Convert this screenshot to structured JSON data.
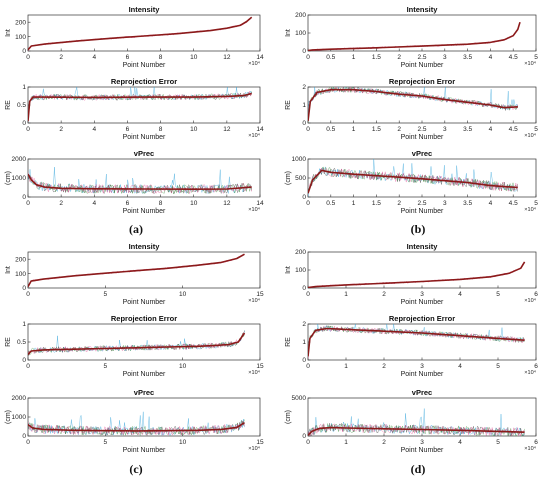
{
  "panels": [
    {
      "label": "(a)"
    },
    {
      "label": "(b)"
    },
    {
      "label": "(c)"
    },
    {
      "label": "(d)"
    }
  ],
  "colors": {
    "median": "#8b1a1a",
    "band": "#e23a8a",
    "noise_blue": "#2a9fd8",
    "noise_dark": "#3a3a3a",
    "noise_green": "#3f8f3f",
    "axis": "#333333"
  },
  "chart_data": [
    {
      "panel": "(a)",
      "type": "line",
      "title": "Intensity",
      "xlabel": "Point Number",
      "ylabel": "Int",
      "x_exponent": "×10⁴",
      "xlim": [
        0,
        14
      ],
      "ylim": [
        0,
        250
      ],
      "xticks": [
        0,
        2,
        4,
        6,
        8,
        10,
        12,
        14
      ],
      "yticks": [
        0,
        100,
        200
      ],
      "series": [
        {
          "x": [
            0,
            0.2,
            1,
            3,
            5,
            7,
            9,
            11,
            12,
            12.8,
            13.2,
            13.5
          ],
          "y": [
            8,
            35,
            48,
            70,
            88,
            104,
            120,
            142,
            158,
            178,
            205,
            235
          ]
        }
      ]
    },
    {
      "panel": "(a)",
      "type": "line",
      "title": "Reprojection Error",
      "xlabel": "Point Number",
      "ylabel": "RE",
      "x_exponent": "×10⁴",
      "xlim": [
        0,
        14
      ],
      "ylim": [
        0,
        1
      ],
      "xticks": [
        0,
        2,
        4,
        6,
        8,
        10,
        12,
        14
      ],
      "yticks": [
        0,
        0.5,
        1
      ],
      "series": [
        {
          "x": [
            0,
            0.1,
            0.3,
            1,
            4,
            7,
            10,
            12,
            13,
            13.5
          ],
          "y": [
            0.05,
            0.6,
            0.72,
            0.72,
            0.71,
            0.72,
            0.72,
            0.74,
            0.76,
            0.82
          ]
        }
      ]
    },
    {
      "panel": "(a)",
      "type": "line",
      "title": "vPrec",
      "xlabel": "Point Number",
      "ylabel": "(cm)",
      "x_exponent": "×10⁴",
      "xlim": [
        0,
        14
      ],
      "ylim": [
        0,
        2000
      ],
      "xticks": [
        0,
        2,
        4,
        6,
        8,
        10,
        12,
        14
      ],
      "yticks": [
        0,
        1000,
        2000
      ],
      "series": [
        {
          "x": [
            0,
            0.2,
            0.5,
            1,
            2,
            4,
            7,
            10,
            12,
            13.5
          ],
          "y": [
            1200,
            900,
            650,
            520,
            460,
            430,
            420,
            410,
            420,
            520
          ]
        }
      ]
    },
    {
      "panel": "(b)",
      "type": "line",
      "title": "Intensity",
      "xlabel": "Point Number",
      "ylabel": "Int",
      "x_exponent": "×10⁴",
      "xlim": [
        0,
        5
      ],
      "ylim": [
        0,
        200
      ],
      "xticks": [
        0,
        0.5,
        1,
        1.5,
        2,
        2.5,
        3,
        3.5,
        4,
        4.5,
        5
      ],
      "yticks": [
        0,
        100,
        200
      ],
      "series": [
        {
          "x": [
            0,
            0.1,
            0.5,
            1.5,
            2.5,
            3.5,
            4,
            4.3,
            4.5,
            4.6,
            4.65
          ],
          "y": [
            2,
            6,
            10,
            18,
            27,
            38,
            48,
            62,
            85,
            120,
            160
          ]
        }
      ]
    },
    {
      "panel": "(b)",
      "type": "line",
      "title": "Reprojection Error",
      "xlabel": "Point Number",
      "ylabel": "RE",
      "x_exponent": "×10⁴",
      "xlim": [
        0,
        5
      ],
      "ylim": [
        0,
        2
      ],
      "xticks": [
        0,
        0.5,
        1,
        1.5,
        2,
        2.5,
        3,
        3.5,
        4,
        4.5,
        5
      ],
      "yticks": [
        0,
        1,
        2
      ],
      "series": [
        {
          "x": [
            0,
            0.05,
            0.2,
            0.5,
            1,
            1.5,
            2,
            2.5,
            3,
            3.5,
            4,
            4.3,
            4.6
          ],
          "y": [
            0.1,
            1.2,
            1.7,
            1.85,
            1.85,
            1.75,
            1.6,
            1.5,
            1.3,
            1.15,
            1.0,
            0.85,
            0.9
          ]
        }
      ]
    },
    {
      "panel": "(b)",
      "type": "line",
      "title": "vPrec",
      "xlabel": "Point Number",
      "ylabel": "(cm)",
      "x_exponent": "×10⁴",
      "xlim": [
        0,
        5
      ],
      "ylim": [
        0,
        1000
      ],
      "xticks": [
        0,
        0.5,
        1,
        1.5,
        2,
        2.5,
        3,
        3.5,
        4,
        4.5,
        5
      ],
      "yticks": [
        0,
        500,
        1000
      ],
      "series": [
        {
          "x": [
            0,
            0.1,
            0.3,
            0.5,
            1,
            1.5,
            2,
            2.5,
            3,
            3.5,
            4,
            4.6
          ],
          "y": [
            100,
            450,
            700,
            650,
            600,
            560,
            520,
            480,
            430,
            380,
            300,
            250
          ]
        }
      ]
    },
    {
      "panel": "(c)",
      "type": "line",
      "title": "Intensity",
      "xlabel": "Point Number",
      "ylabel": "Int",
      "x_exponent": "×10⁴",
      "xlim": [
        0,
        15
      ],
      "ylim": [
        0,
        250
      ],
      "xticks": [
        0,
        5,
        10,
        15
      ],
      "yticks": [
        0,
        100,
        200
      ],
      "series": [
        {
          "x": [
            0,
            0.2,
            1,
            3,
            5,
            7,
            9,
            11,
            12.5,
            13.5,
            14
          ],
          "y": [
            10,
            48,
            62,
            85,
            103,
            120,
            137,
            158,
            178,
            205,
            235
          ]
        }
      ]
    },
    {
      "panel": "(c)",
      "type": "line",
      "title": "Reprojection Error",
      "xlabel": "Point Number",
      "ylabel": "RE",
      "x_exponent": "×10⁴",
      "xlim": [
        0,
        15
      ],
      "ylim": [
        0,
        1
      ],
      "xticks": [
        0,
        5,
        10,
        15
      ],
      "yticks": [
        0,
        0.5,
        1
      ],
      "series": [
        {
          "x": [
            0,
            0.2,
            1,
            3,
            5,
            7,
            9,
            11,
            12,
            13,
            13.6,
            14
          ],
          "y": [
            0.15,
            0.25,
            0.28,
            0.3,
            0.32,
            0.34,
            0.36,
            0.38,
            0.4,
            0.43,
            0.5,
            0.75
          ]
        }
      ]
    },
    {
      "panel": "(c)",
      "type": "line",
      "title": "vPrec",
      "xlabel": "Point Number",
      "ylabel": "(cm)",
      "x_exponent": "×10⁴",
      "xlim": [
        0,
        15
      ],
      "ylim": [
        0,
        2000
      ],
      "xticks": [
        0,
        5,
        10,
        15
      ],
      "yticks": [
        0,
        1000,
        2000
      ],
      "series": [
        {
          "x": [
            0,
            0.3,
            1,
            3,
            5,
            7,
            9,
            11,
            12.5,
            13.5,
            14
          ],
          "y": [
            600,
            420,
            350,
            300,
            280,
            270,
            280,
            300,
            350,
            450,
            700
          ]
        }
      ]
    },
    {
      "panel": "(d)",
      "type": "line",
      "title": "Intensity",
      "xlabel": "Point Number",
      "ylabel": "Int",
      "x_exponent": "×10⁴",
      "xlim": [
        0,
        6
      ],
      "ylim": [
        0,
        200
      ],
      "xticks": [
        0,
        1,
        2,
        3,
        4,
        5,
        6
      ],
      "yticks": [
        0,
        100,
        200
      ],
      "series": [
        {
          "x": [
            0,
            0.2,
            1,
            2,
            3,
            4,
            4.8,
            5.3,
            5.6,
            5.7
          ],
          "y": [
            2,
            8,
            17,
            26,
            36,
            48,
            62,
            82,
            110,
            145
          ]
        }
      ]
    },
    {
      "panel": "(d)",
      "type": "line",
      "title": "Reprojection Error",
      "xlabel": "Point Number",
      "ylabel": "RE",
      "x_exponent": "×10⁴",
      "xlim": [
        0,
        6
      ],
      "ylim": [
        0,
        2
      ],
      "xticks": [
        0,
        1,
        2,
        3,
        4,
        5,
        6
      ],
      "yticks": [
        0,
        1,
        2
      ],
      "series": [
        {
          "x": [
            0,
            0.05,
            0.2,
            0.5,
            1,
            2,
            3,
            4,
            5,
            5.7
          ],
          "y": [
            0.2,
            1.2,
            1.65,
            1.75,
            1.7,
            1.6,
            1.5,
            1.35,
            1.2,
            1.1
          ]
        }
      ]
    },
    {
      "panel": "(d)",
      "type": "line",
      "title": "vPrec",
      "xlabel": "Point Number",
      "ylabel": "(cm)",
      "x_exponent": "×10⁴",
      "xlim": [
        0,
        6
      ],
      "ylim": [
        0,
        5000
      ],
      "xticks": [
        0,
        1,
        2,
        3,
        4,
        5,
        6
      ],
      "yticks": [
        0,
        5000
      ],
      "series": [
        {
          "x": [
            0,
            0.1,
            0.3,
            0.6,
            1,
            2,
            3,
            4,
            5,
            5.7
          ],
          "y": [
            100,
            600,
            1000,
            1100,
            1050,
            950,
            850,
            750,
            600,
            500
          ]
        }
      ]
    }
  ]
}
